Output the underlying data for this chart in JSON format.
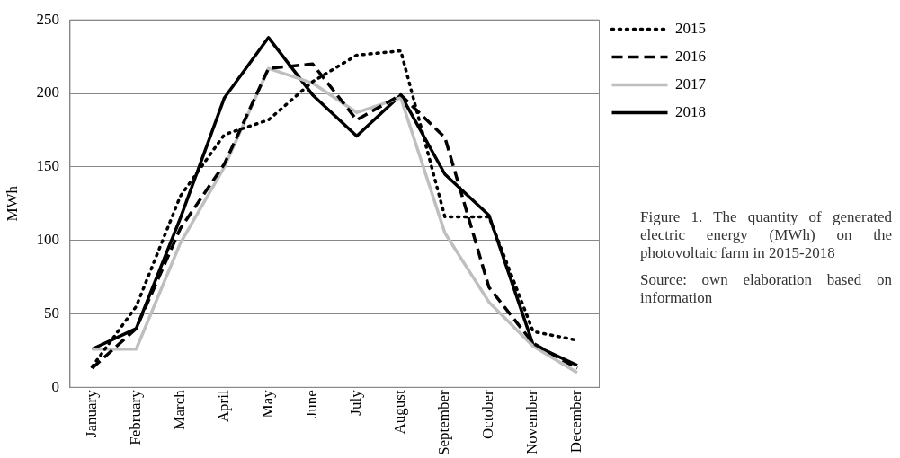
{
  "chart_data": {
    "type": "line",
    "title": "Figure 1. The quantity of generated electric energy (MWh) on the photovoltaic farm in 2015-2018",
    "annotations": [
      "Source: own elaboration based on information"
    ],
    "ylabel": "MWh",
    "categories": [
      "January",
      "February",
      "March",
      "April",
      "May",
      "June",
      "July",
      "August",
      "September",
      "October",
      "November",
      "December"
    ],
    "series": [
      {
        "name": "2015",
        "color": "#000000",
        "line_style": "dotted",
        "values": [
          14,
          55,
          130,
          172,
          182,
          208,
          226,
          229,
          116,
          116,
          38,
          32
        ]
      },
      {
        "name": "2016",
        "color": "#000000",
        "line_style": "dashed",
        "values": [
          13,
          40,
          108,
          152,
          217,
          220,
          182,
          199,
          170,
          68,
          30,
          13
        ]
      },
      {
        "name": "2017",
        "color": "#bfbfbf",
        "line_style": "solid",
        "values": [
          26,
          26,
          98,
          150,
          217,
          207,
          187,
          197,
          105,
          58,
          28,
          10
        ]
      },
      {
        "name": "2018",
        "color": "#000000",
        "line_style": "solid",
        "values": [
          26,
          40,
          115,
          197,
          238,
          199,
          171,
          199,
          145,
          117,
          29,
          15
        ]
      }
    ],
    "ylim": [
      0,
      250
    ],
    "yticks": [
      0,
      50,
      100,
      150,
      200,
      250
    ],
    "grid": "y",
    "legend": "right",
    "marker": "none"
  }
}
